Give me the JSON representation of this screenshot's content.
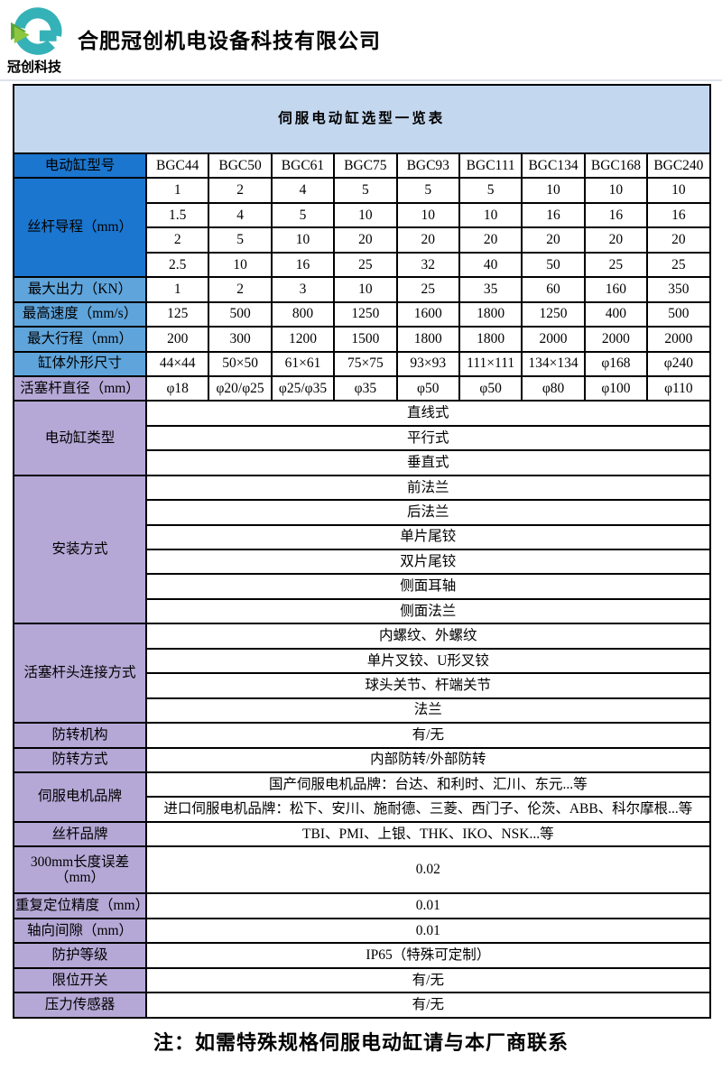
{
  "page": {
    "company_name": "合肥冠创机电设备科技有限公司",
    "logo_sub": "冠创科技",
    "footer_note": "注：如需特殊规格伺服电动缸请与本厂商联系"
  },
  "colors": {
    "deep_blue": "#1b76cf",
    "mid_blue": "#5fa5dc",
    "purple": "#b5a8d6",
    "title_bg": "#c3d7ef",
    "logo_teal": "#35b1b8",
    "logo_green": "#8dc63f",
    "logo_green_dark": "#58a23c"
  },
  "table": {
    "title": "伺服电动缸选型一览表",
    "model_row": {
      "label": "电动缸型号",
      "cells": [
        "BGC44",
        "BGC50",
        "BGC61",
        "BGC75",
        "BGC93",
        "BGC111",
        "BGC134",
        "BGC168",
        "BGC240"
      ]
    },
    "lead_screw": {
      "label": "丝杆导程（mm）",
      "rows": [
        [
          "1",
          "2",
          "4",
          "5",
          "5",
          "5",
          "10",
          "10",
          "10"
        ],
        [
          "1.5",
          "4",
          "5",
          "10",
          "10",
          "10",
          "16",
          "16",
          "16"
        ],
        [
          "2",
          "5",
          "10",
          "20",
          "20",
          "20",
          "20",
          "20",
          "20"
        ],
        [
          "2.5",
          "10",
          "16",
          "25",
          "32",
          "40",
          "50",
          "25",
          "25"
        ]
      ]
    },
    "spec_rows": [
      {
        "label": "最大出力（KN）",
        "tone": "mid",
        "cells": [
          "1",
          "2",
          "3",
          "10",
          "25",
          "35",
          "60",
          "160",
          "350"
        ]
      },
      {
        "label": "最高速度（mm/s）",
        "tone": "mid",
        "cells": [
          "125",
          "500",
          "800",
          "1250",
          "1600",
          "1800",
          "1250",
          "400",
          "500"
        ]
      },
      {
        "label": "最大行程（mm）",
        "tone": "mid",
        "cells": [
          "200",
          "300",
          "1200",
          "1500",
          "1800",
          "1800",
          "2000",
          "2000",
          "2000"
        ]
      },
      {
        "label": "缸体外形尺寸",
        "tone": "mid",
        "cells": [
          "44×44",
          "50×50",
          "61×61",
          "75×75",
          "93×93",
          "111×111",
          "134×134",
          "φ168",
          "φ240"
        ]
      },
      {
        "label": "活塞杆直径（mm）",
        "tone": "purple",
        "cells": [
          "φ18",
          "φ20/φ25",
          "φ25/φ35",
          "φ35",
          "φ50",
          "φ50",
          "φ80",
          "φ100",
          "φ110"
        ]
      }
    ],
    "group_rows": [
      {
        "label": "电动缸类型",
        "rows": [
          "直线式",
          "平行式",
          "垂直式"
        ]
      },
      {
        "label": "安装方式",
        "rows": [
          "前法兰",
          "后法兰",
          "单片尾铰",
          "双片尾铰",
          "侧面耳轴",
          "侧面法兰"
        ]
      },
      {
        "label": "活塞杆头连接方式",
        "rows": [
          "内螺纹、外螺纹",
          "单片叉铰、U形叉铰",
          "球头关节、杆端关节",
          "法兰"
        ]
      },
      {
        "label": "防转机构",
        "rows": [
          "有/无"
        ]
      },
      {
        "label": "防转方式",
        "rows": [
          "内部防转/外部防转"
        ]
      },
      {
        "label": "伺服电机品牌",
        "rows": [
          "国产伺服电机品牌：台达、和利时、汇川、东元...等",
          "进口伺服电机品牌：松下、安川、施耐德、三菱、西门子、伦茨、ABB、科尔摩根...等"
        ]
      },
      {
        "label": "丝杆品牌",
        "rows": [
          "TBI、PMI、上银、THK、IKO、NSK...等"
        ]
      },
      {
        "label": "300mm长度误差（mm）",
        "rows": [
          "0.02"
        ]
      },
      {
        "label": "重复定位精度（mm）",
        "rows": [
          "0.01"
        ]
      },
      {
        "label": "轴向间隙（mm）",
        "rows": [
          "0.01"
        ]
      },
      {
        "label": "防护等级",
        "rows": [
          "IP65（特殊可定制）"
        ]
      },
      {
        "label": "限位开关",
        "rows": [
          "有/无"
        ]
      },
      {
        "label": "压力传感器",
        "rows": [
          "有/无"
        ]
      }
    ]
  }
}
